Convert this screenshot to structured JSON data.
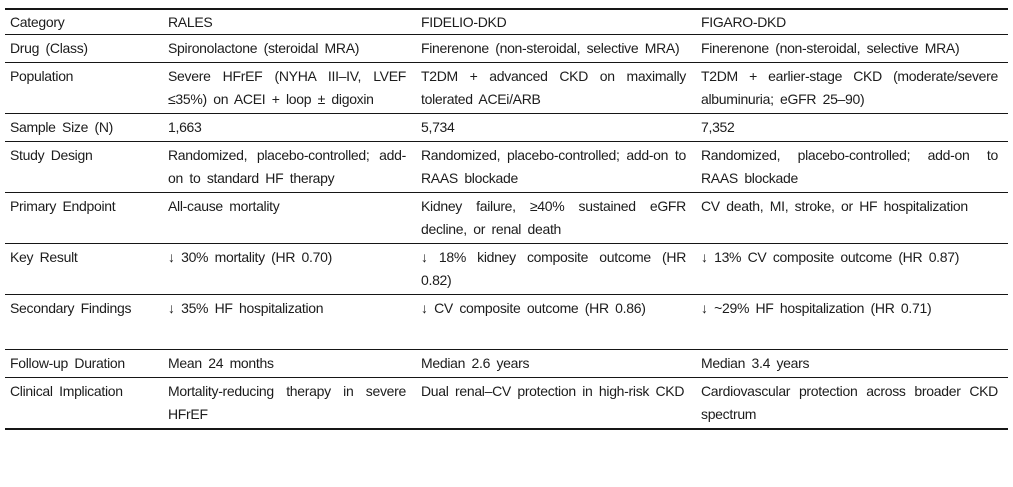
{
  "colors": {
    "background": "#ffffff",
    "text": "#1c1c1c",
    "rule": "#161616"
  },
  "table": {
    "headers": [
      "Category",
      "RALES",
      "FIDELIO-DKD",
      "FIGARO-DKD"
    ],
    "rows": [
      {
        "cells": [
          "Drug (Class)",
          "Spironolactone (steroidal MRA)",
          "Finerenone (non-steroidal, selective MRA)",
          "Finerenone (non-steroidal, selective MRA)"
        ]
      },
      {
        "cells": [
          "Population",
          "Severe HFrEF (NYHA III–IV, LVEF ≤35%) on ACEI + loop ± digoxin",
          "T2DM + advanced CKD on maximally tolerated ACEi/ARB",
          "T2DM + earlier-stage CKD (moderate/severe albuminuria; eGFR 25–90)"
        ]
      },
      {
        "cells": [
          "Sample Size (N)",
          "1,663",
          "5,734",
          "7,352"
        ]
      },
      {
        "cells": [
          "Study Design",
          "Randomized, placebo-controlled; add-on to standard HF therapy",
          "Randomized, placebo-controlled; add-on to RAAS blockade",
          "Randomized, placebo-controlled; add-on to RAAS blockade"
        ]
      },
      {
        "cells": [
          "Primary Endpoint",
          "All-cause mortality",
          "Kidney failure, ≥40% sustained eGFR decline, or renal death",
          "CV death, MI, stroke, or HF hospitalization"
        ]
      },
      {
        "cells": [
          "Key Result",
          "↓ 30% mortality (HR 0.70)",
          "↓ 18% kidney composite outcome (HR 0.82)",
          "↓ 13% CV composite outcome (HR 0.87)"
        ]
      },
      {
        "cells": [
          "Secondary Findings",
          "↓ 35% HF hospitalization",
          "↓ CV composite outcome (HR 0.86)",
          "↓ ~29% HF hospitalization (HR 0.71)"
        ]
      },
      {
        "cells": [
          "Follow-up Duration",
          "Mean 24 months",
          "Median 2.6 years",
          "Median 3.4 years"
        ]
      },
      {
        "cells": [
          "Clinical Implication",
          "Mortality-reducing therapy in severe HFrEF",
          "Dual renal–CV protection in high-risk CKD",
          "Cardiovascular protection across broader CKD spectrum"
        ]
      }
    ]
  }
}
